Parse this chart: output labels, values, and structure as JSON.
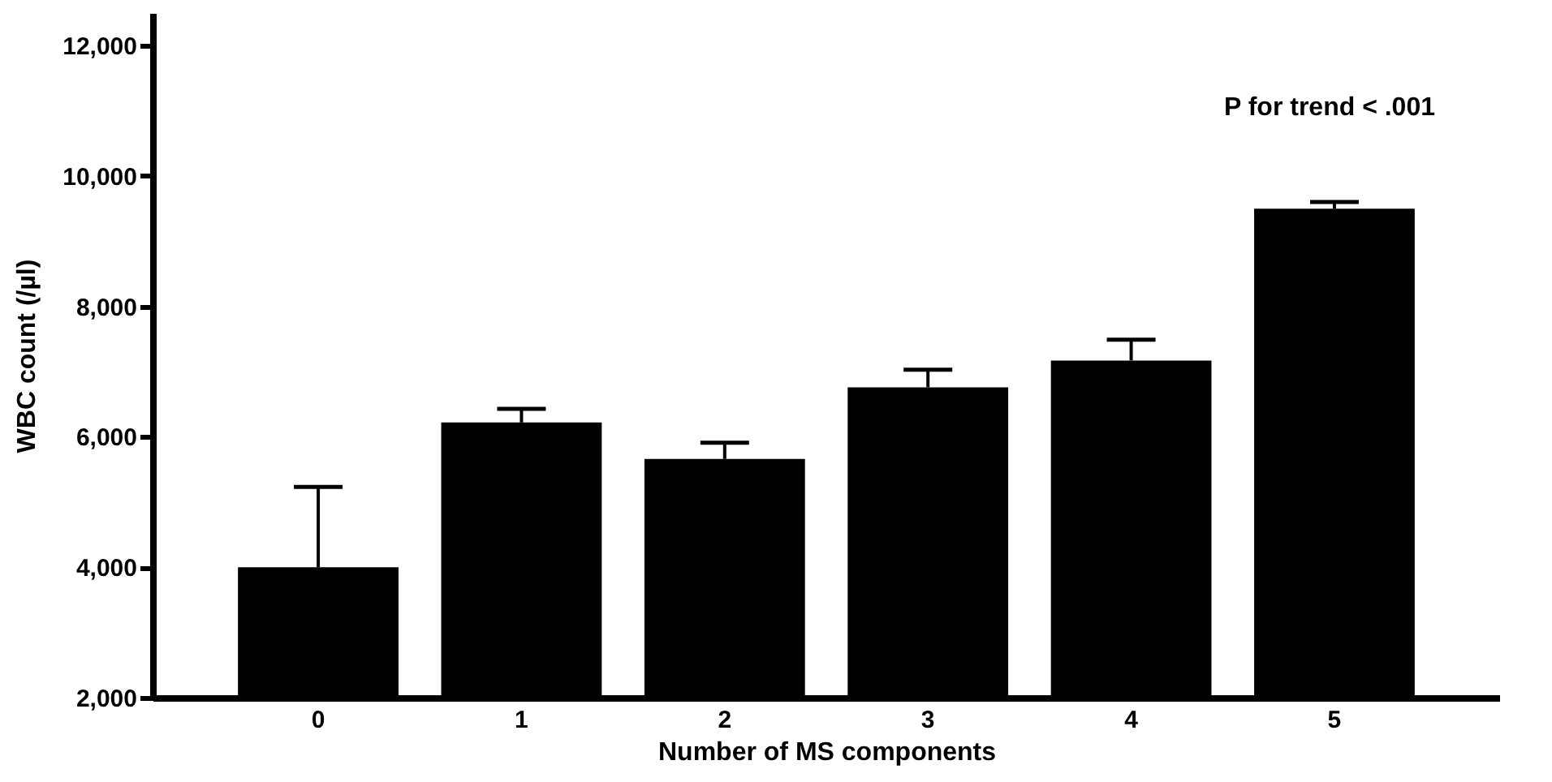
{
  "chart_data": {
    "type": "bar",
    "xlabel": "Number of MS components",
    "ylabel": "WBC count (/µl)",
    "categories": [
      "0",
      "1",
      "2",
      "3",
      "4",
      "5"
    ],
    "values": [
      4000,
      6220,
      5660,
      6760,
      7170,
      9500
    ],
    "errors": [
      [
        4000,
        5230
      ],
      [
        6220,
        6430
      ],
      [
        5660,
        5910
      ],
      [
        6760,
        7030
      ],
      [
        7170,
        7490
      ],
      [
        9500,
        9600
      ]
    ],
    "color": "#000000",
    "ylim": [
      2000,
      12500
    ],
    "yticks": [
      {
        "value": 2000,
        "label": "2,000"
      },
      {
        "value": 4000,
        "label": "4,000"
      },
      {
        "value": 6000,
        "label": "6,000"
      },
      {
        "value": 8000,
        "label": "8,000"
      },
      {
        "value": 10000,
        "label": "10,000"
      },
      {
        "value": 12000,
        "label": "12,000"
      }
    ],
    "annotations": [
      "P for trend < .001"
    ]
  }
}
